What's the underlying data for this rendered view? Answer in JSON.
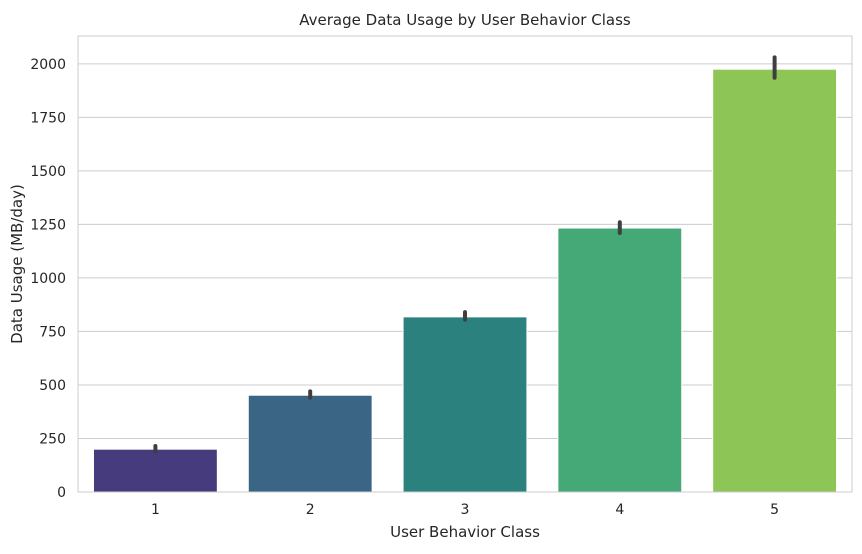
{
  "chart_data": {
    "type": "bar",
    "title": "Average Data Usage by User Behavior Class",
    "xlabel": "User Behavior Class",
    "ylabel": "Data Usage (MB/day)",
    "categories": [
      "1",
      "2",
      "3",
      "4",
      "5"
    ],
    "values": [
      200,
      452,
      818,
      1233,
      1975
    ],
    "error_bars": [
      [
        190,
        215
      ],
      [
        440,
        470
      ],
      [
        805,
        840
      ],
      [
        1210,
        1260
      ],
      [
        1935,
        2030
      ]
    ],
    "colors": [
      "#463b7d",
      "#3b6584",
      "#2a817e",
      "#45a877",
      "#8dc556"
    ],
    "ylim": [
      0,
      2130
    ],
    "yticks": [
      0,
      250,
      500,
      750,
      1000,
      1250,
      1500,
      1750,
      2000
    ],
    "grid": "horizontal",
    "legend": "none"
  }
}
